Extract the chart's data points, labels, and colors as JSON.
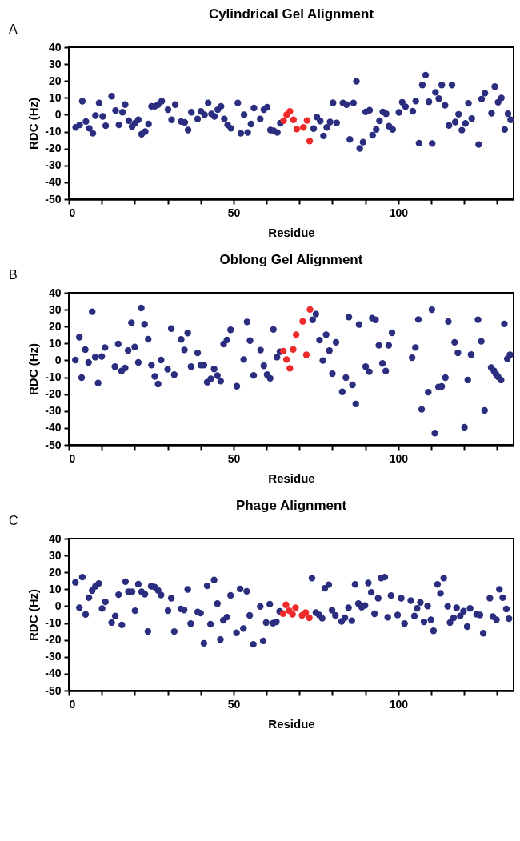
{
  "chart_data": [
    {
      "type": "scatter",
      "title": "Cylindrical Gel Alignment",
      "xlabel": "Residue",
      "ylabel": "RDC (Hz)",
      "annotations": [
        "A"
      ],
      "marker": "circle",
      "xlim": [
        0,
        135
      ],
      "xticks": [
        0,
        {
          "value": 10,
          "label": null
        },
        {
          "value": 20,
          "label": null
        },
        {
          "value": 30,
          "label": null
        },
        {
          "value": 40,
          "label": null
        },
        50,
        {
          "value": 60,
          "label": null
        },
        {
          "value": 70,
          "label": null
        },
        {
          "value": 80,
          "label": null
        },
        {
          "value": 90,
          "label": null
        },
        100,
        {
          "value": 110,
          "label": null
        },
        {
          "value": 120,
          "label": null
        },
        {
          "value": 130,
          "label": null
        }
      ],
      "ylim": [
        -50,
        40
      ],
      "yticks": [
        -50,
        -40,
        -30,
        -20,
        -10,
        0,
        10,
        20,
        30,
        40
      ],
      "series": [
        {
          "color": "#2b2d7f",
          "x": [
            2.1,
            3.3,
            4.1,
            5.2,
            6.2,
            7.3,
            8.1,
            9.2,
            10.3,
            11.2,
            13.0,
            14.2,
            15.2,
            16.3,
            17.1,
            18.2,
            19.2,
            20.1,
            21.1,
            22.1,
            23.2,
            24.2,
            25.1,
            26.1,
            27.1,
            28.2,
            30.1,
            31.2,
            32.3,
            34.1,
            35.2,
            36.2,
            37.2,
            39.1,
            40.1,
            41.2,
            42.3,
            43.3,
            44.2,
            45.2,
            46.2,
            47.2,
            48.2,
            49.2,
            51.3,
            52.2,
            53.2,
            54.3,
            55.3,
            56.2,
            58.1,
            59.2,
            60.2,
            61.2,
            62.2,
            63.3,
            64.2,
            74.3,
            75.3,
            76.3,
            77.3,
            78.3,
            79.3,
            80.2,
            81.3,
            83.2,
            84.3,
            85.3,
            86.4,
            87.3,
            88.3,
            89.3,
            90.1,
            91.3,
            92.2,
            93.3,
            94.3,
            95.3,
            96.3,
            97.2,
            98.3,
            100.2,
            101.2,
            102.2,
            104.4,
            105.3,
            106.3,
            107.3,
            108.3,
            109.3,
            110.3,
            111.3,
            112.3,
            113.2,
            114.2,
            115.4,
            116.3,
            117.3,
            118.3,
            119.3,
            120.4,
            121.3,
            122.3,
            124.4,
            125.3,
            126.3,
            128.3,
            129.3,
            130.3,
            131.3,
            132.3,
            133.3,
            134.1
          ],
          "values": [
            -7.5,
            -6,
            8,
            -4,
            -8,
            -11,
            -0.5,
            7,
            -1,
            -6.5,
            11,
            2.5,
            -6,
            1.5,
            6,
            -3.5,
            -7,
            -5,
            -3,
            -11.5,
            -10,
            -5.5,
            5,
            5,
            6,
            8,
            3,
            -3,
            6,
            -4,
            -4.5,
            -9,
            1.5,
            -2.5,
            2,
            0,
            7,
            0.5,
            -1,
            3,
            5,
            -2.5,
            -6,
            -8,
            7,
            -11,
            0,
            -10.5,
            -5.5,
            4,
            -2.5,
            3,
            4.5,
            -9,
            -9.5,
            -10.5,
            -5,
            -8.2,
            -1.4,
            -3.7,
            -12.5,
            -7.5,
            -4.3,
            7.1,
            -4.8,
            7,
            6,
            -14.6,
            7,
            19.8,
            -19.9,
            -16.2,
            1.7,
            2.7,
            -12.1,
            -8.7,
            -3.6,
            1.7,
            0.6,
            -6.8,
            -8.7,
            1.4,
            7.4,
            4.8,
            2.1,
            8.1,
            -16.8,
            17.6,
            23.5,
            7.7,
            -17,
            13.3,
            9.6,
            17.6,
            5.6,
            -6.3,
            17.6,
            -4.3,
            0.3,
            -9.1,
            -5.1,
            6.8,
            -2.3,
            -17.6,
            9.3,
            12.8,
            0.9,
            16.7,
            7.4,
            10,
            -8.7,
            0.6,
            -3
          ]
        },
        {
          "color": "#ee2a2a",
          "x": [
            65.2,
            66.1,
            67.1,
            68.2,
            69.2,
            71.2,
            72.3,
            73.1
          ],
          "values": [
            -3.5,
            0,
            2,
            -3,
            -8.5,
            -7.5,
            -3.4,
            -15.6
          ]
        }
      ]
    },
    {
      "type": "scatter",
      "title": "Oblong Gel Alignment",
      "xlabel": "Residue",
      "ylabel": "RDC (Hz)",
      "annotations": [
        "B"
      ],
      "marker": "circle",
      "xlim": [
        0,
        135
      ],
      "xticks": [
        0,
        {
          "value": 10,
          "label": null
        },
        {
          "value": 20,
          "label": null
        },
        {
          "value": 30,
          "label": null
        },
        {
          "value": 40,
          "label": null
        },
        50,
        {
          "value": 60,
          "label": null
        },
        {
          "value": 70,
          "label": null
        },
        {
          "value": 80,
          "label": null
        },
        {
          "value": 90,
          "label": null
        },
        100,
        {
          "value": 110,
          "label": null
        },
        {
          "value": 120,
          "label": null
        },
        {
          "value": 130,
          "label": null
        }
      ],
      "ylim": [
        -50,
        40
      ],
      "yticks": [
        -50,
        -40,
        -30,
        -20,
        -10,
        0,
        10,
        20,
        30,
        40
      ],
      "series": [
        {
          "color": "#2b2d7f",
          "x": [
            2.0,
            3.2,
            3.9,
            5.0,
            6.0,
            7.1,
            8.0,
            8.9,
            10.0,
            11.0,
            14.0,
            15.0,
            16.0,
            17.1,
            18.0,
            19.0,
            20.0,
            21.1,
            22.0,
            23.0,
            24.1,
            25.1,
            26.1,
            27.1,
            28.0,
            30.0,
            31.1,
            32.0,
            34.1,
            35.1,
            36.1,
            37.1,
            39.1,
            40.1,
            41.0,
            42.0,
            43.1,
            44.1,
            45.1,
            46.1,
            47.0,
            48.0,
            49.1,
            51.0,
            53.1,
            54.1,
            55.0,
            56.1,
            58.2,
            59.2,
            60.2,
            61.1,
            62.1,
            63.2,
            64.1,
            74.0,
            75.0,
            76.1,
            77.1,
            78.1,
            79.1,
            80.0,
            81.1,
            83.0,
            84.1,
            85.0,
            86.1,
            87.1,
            88.1,
            90.1,
            91.2,
            92.1,
            93.1,
            94.1,
            95.2,
            96.2,
            97.1,
            98.1,
            104.2,
            105.2,
            106.1,
            107.1,
            109.1,
            110.2,
            111.1,
            112.2,
            113.2,
            114.3,
            115.2,
            117.1,
            118.1,
            120.1,
            121.1,
            122.1,
            124.2,
            125.2,
            126.2,
            128.2,
            129.0,
            129.7,
            130.3,
            131.2,
            132.2,
            133.1,
            133.9
          ],
          "values": [
            0.2,
            13.7,
            -10.2,
            6.4,
            -1.2,
            28.8,
            1.9,
            -13.4,
            2.3,
            7.6,
            -3.7,
            9.7,
            -6.3,
            -4.5,
            5.8,
            22.3,
            7.9,
            -1.2,
            31,
            21.4,
            12.5,
            -2.8,
            -9.5,
            -14,
            0.2,
            -5.3,
            18.8,
            -8.4,
            12.4,
            6.2,
            16.2,
            -3.7,
            4.4,
            -2.8,
            -2.8,
            -12.9,
            -10.9,
            -5.1,
            -9,
            -12.3,
            9.7,
            12.1,
            18.1,
            -15.3,
            0.5,
            22.8,
            11.7,
            -8.9,
            6.1,
            -3.2,
            -8.4,
            -10.6,
            18.3,
            1.9,
            5.1,
            24,
            27.4,
            12,
            -0.1,
            15.2,
            5.8,
            -7.9,
            10.7,
            -18.6,
            -10.2,
            25.6,
            -14.5,
            -25.8,
            21.2,
            -3.7,
            -6.7,
            25,
            24,
            8.9,
            -1.8,
            -6.3,
            8.9,
            16.3,
            1.6,
            7.6,
            24.2,
            -29,
            -18.8,
            30,
            -43,
            -15.8,
            -15.4,
            -10.2,
            23,
            10.7,
            4.5,
            -39.6,
            -11.6,
            3.4,
            24.1,
            11.3,
            -29.6,
            -4.3,
            -6.1,
            -8.3,
            -9.8,
            -11.6,
            21.6,
            0.9,
            3.3
          ]
        },
        {
          "color": "#ee2a2a",
          "x": [
            65.1,
            66.1,
            67.1,
            68.1,
            69.0,
            71.0,
            72.1,
            73.2
          ],
          "values": [
            5.5,
            0.5,
            -4.7,
            6.5,
            15.2,
            23.1,
            3.3,
            30.1
          ]
        }
      ]
    },
    {
      "type": "scatter",
      "title": "Phage Alignment",
      "xlabel": "Residue",
      "ylabel": "RDC (Hz)",
      "annotations": [
        "C"
      ],
      "marker": "circle",
      "xlim": [
        0,
        135
      ],
      "xticks": [
        0,
        {
          "value": 10,
          "label": null
        },
        {
          "value": 20,
          "label": null
        },
        {
          "value": 30,
          "label": null
        },
        {
          "value": 40,
          "label": null
        },
        50,
        {
          "value": 60,
          "label": null
        },
        {
          "value": 70,
          "label": null
        },
        {
          "value": 80,
          "label": null
        },
        {
          "value": 90,
          "label": null
        },
        100,
        {
          "value": 110,
          "label": null
        },
        {
          "value": 120,
          "label": null
        },
        {
          "value": 130,
          "label": null
        }
      ],
      "ylim": [
        -50,
        40
      ],
      "yticks": [
        -50,
        -40,
        -30,
        -20,
        -10,
        0,
        10,
        20,
        30,
        40
      ],
      "series": [
        {
          "color": "#2b2d7f",
          "x": [
            2.0,
            3.2,
            4.1,
            5.1,
            6.1,
            7.1,
            8.1,
            9.1,
            10.1,
            11.1,
            13.0,
            14.1,
            15.1,
            16.1,
            17.2,
            18.1,
            19.2,
            20.1,
            21.1,
            22.1,
            23.1,
            24.0,
            25.0,
            26.1,
            27.1,
            28.0,
            30.1,
            31.1,
            32.0,
            34.0,
            35.0,
            36.1,
            37.0,
            39.1,
            40.0,
            41.0,
            42.0,
            43.0,
            44.1,
            45.1,
            46.0,
            46.9,
            48.0,
            49.1,
            50.9,
            52.0,
            53.0,
            54.0,
            54.9,
            56.0,
            58.1,
            59.0,
            59.9,
            61.0,
            62.0,
            63.0,
            64.0,
            73.8,
            75.0,
            76.0,
            76.9,
            77.7,
            78.9,
            79.9,
            80.9,
            82.8,
            83.8,
            84.9,
            85.9,
            86.9,
            87.9,
            88.9,
            89.9,
            90.9,
            91.8,
            92.8,
            93.9,
            94.8,
            95.9,
            96.8,
            97.8,
            99.8,
            100.9,
            101.9,
            103.8,
            104.9,
            105.7,
            106.7,
            107.8,
            108.9,
            109.9,
            110.7,
            111.9,
            112.8,
            113.8,
            115.0,
            115.7,
            116.8,
            117.7,
            118.8,
            119.8,
            120.9,
            121.8,
            123.8,
            124.8,
            125.8,
            127.8,
            128.7,
            129.8,
            130.7,
            131.7,
            132.8,
            133.6
          ],
          "values": [
            14.1,
            -0.9,
            17.2,
            -4.9,
            5,
            9.2,
            11.8,
            13.4,
            -1.4,
            2.5,
            -9.7,
            -5.8,
            6.8,
            -11.1,
            14.5,
            8.5,
            8.5,
            -2.7,
            13,
            8.5,
            7.1,
            -15,
            11.8,
            11.3,
            9.3,
            6.6,
            -2.7,
            4.7,
            -15,
            -1.6,
            -2.3,
            9.9,
            -10.3,
            -3.4,
            -4.1,
            -22,
            12,
            -10.7,
            15.5,
            1.5,
            -19.8,
            -8.3,
            -6.5,
            6.4,
            -15.8,
            10.2,
            -13.2,
            8.8,
            -5.5,
            -22.6,
            -0.2,
            -20.6,
            -9.7,
            1.2,
            -10.1,
            -9.3,
            -3.1,
            16.6,
            -3.8,
            -5.2,
            -7.2,
            10.6,
            12.7,
            -2.4,
            -5.5,
            -9,
            -6.9,
            -1,
            -8.6,
            12.9,
            1.5,
            -0.6,
            0.4,
            13.7,
            8.2,
            -4.5,
            4.7,
            16.6,
            17.2,
            -6.6,
            6.3,
            -5.2,
            4.7,
            -10.3,
            3.3,
            -5.8,
            -1.3,
            2.2,
            -9.3,
            0.1,
            -8,
            -14.6,
            12.9,
            7.6,
            16.6,
            -0.1,
            -9.7,
            -6.9,
            -1,
            -5.8,
            -3,
            -12.1,
            -1.3,
            -4.8,
            -5.2,
            -16,
            4.7,
            -6.2,
            -8,
            10,
            5,
            -1.7,
            -7.4
          ]
        },
        {
          "color": "#ee2a2a",
          "x": [
            65.0,
            65.9,
            66.9,
            67.9,
            68.8,
            70.8,
            71.9,
            73.0
          ],
          "values": [
            -4.4,
            0.8,
            -2.7,
            -4.8,
            -0.9,
            -5.5,
            -3.8,
            -6.9
          ]
        }
      ]
    }
  ]
}
